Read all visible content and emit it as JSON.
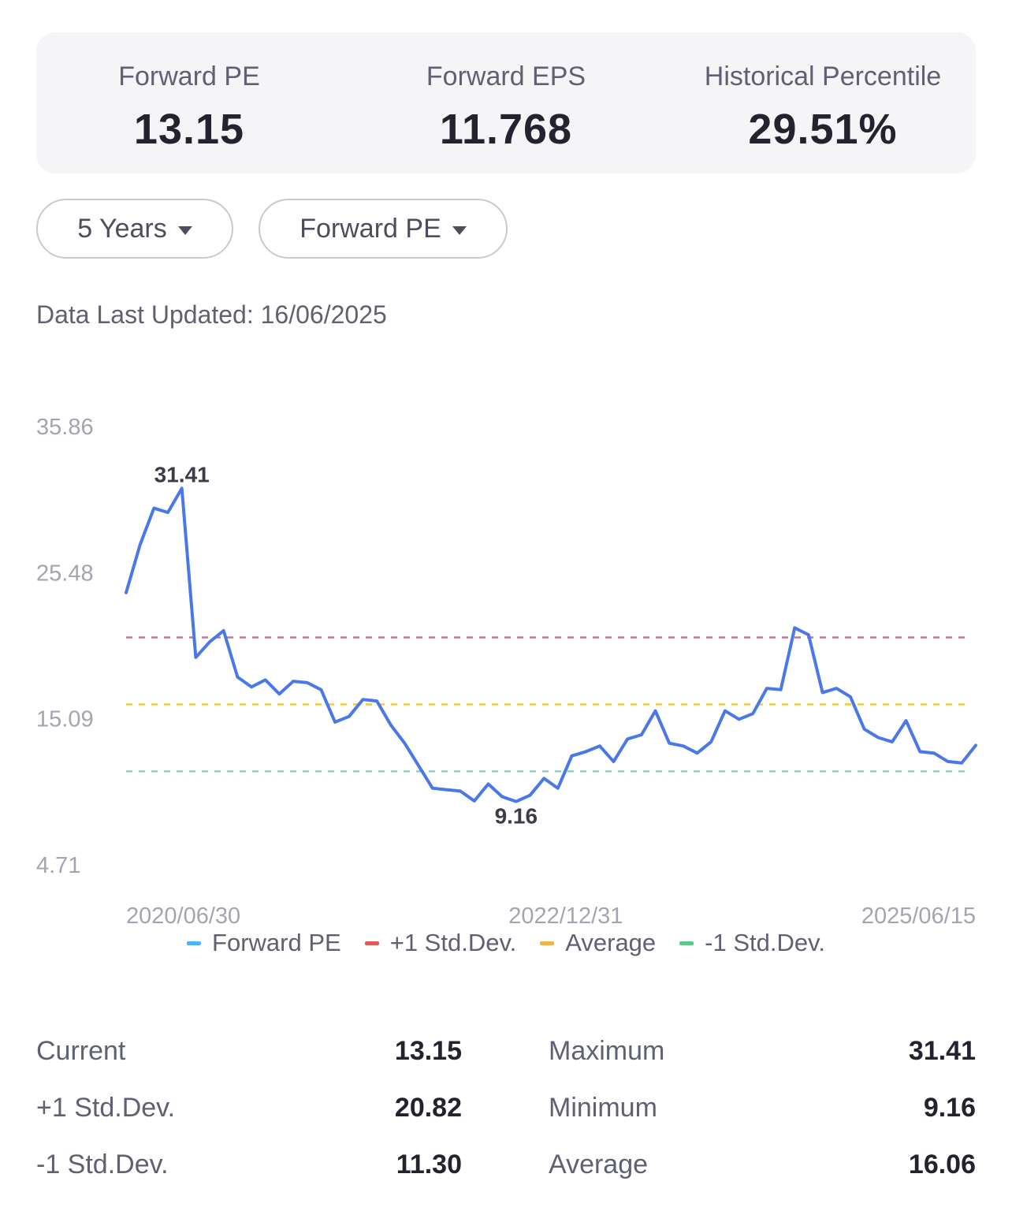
{
  "summary": {
    "metrics": [
      {
        "label": "Forward PE",
        "value": "13.15"
      },
      {
        "label": "Forward EPS",
        "value": "11.768"
      },
      {
        "label": "Historical Percentile",
        "value": "29.51%"
      }
    ]
  },
  "filters": {
    "period": "5 Years",
    "metric": "Forward PE"
  },
  "updated": {
    "label": "Data Last Updated:",
    "date": "16/06/2025"
  },
  "colors": {
    "series": "#4a78e8",
    "plus_std": "#d86aa8",
    "average": "#f0cc3c",
    "minus_std": "#7fd8d0",
    "legend_series": "#4fb3f6",
    "legend_plus_std": "#e05a5a",
    "legend_average": "#f2b04e",
    "legend_minus_std": "#5cc98a"
  },
  "chart_data": {
    "type": "line",
    "y_ticks": [
      "35.86",
      "25.48",
      "15.09",
      "4.71"
    ],
    "ylim": [
      4.71,
      35.86
    ],
    "x_ticks": [
      "2020/06/30",
      "2022/12/31",
      "2025/06/15"
    ],
    "x_range": [
      "2020/06/30",
      "2025/06/15"
    ],
    "series": [
      {
        "name": "Forward PE",
        "values": [
          24.0,
          27.4,
          30.0,
          29.7,
          31.41,
          19.4,
          20.5,
          21.3,
          18.0,
          17.3,
          17.8,
          16.8,
          17.7,
          17.6,
          17.1,
          14.8,
          15.2,
          16.4,
          16.3,
          14.6,
          13.3,
          11.7,
          10.1,
          10.0,
          9.9,
          9.2,
          10.4,
          9.5,
          9.16,
          9.6,
          10.8,
          10.1,
          12.4,
          12.7,
          13.1,
          12.0,
          13.6,
          13.9,
          15.6,
          13.3,
          13.1,
          12.6,
          13.4,
          15.6,
          15.0,
          15.4,
          17.2,
          17.1,
          21.5,
          21.0,
          16.9,
          17.2,
          16.6,
          14.3,
          13.7,
          13.4,
          14.9,
          12.7,
          12.6,
          12.0,
          11.9,
          13.15
        ]
      }
    ],
    "reference_lines": [
      {
        "name": "+1 Std.Dev.",
        "value": 20.82
      },
      {
        "name": "Average",
        "value": 16.06
      },
      {
        "name": "-1 Std.Dev.",
        "value": 11.3
      }
    ],
    "annotations": [
      {
        "label": "31.41",
        "index": 4,
        "value": 31.41,
        "position": "above"
      },
      {
        "label": "9.16",
        "index": 28,
        "value": 9.16,
        "position": "below"
      }
    ],
    "legend": [
      "Forward PE",
      "+1 Std.Dev.",
      "Average",
      "-1 Std.Dev."
    ],
    "legend_placement": "bottom",
    "grid": false
  },
  "stats": {
    "rows": [
      {
        "left_label": "Current",
        "left_value": "13.15",
        "right_label": "Maximum",
        "right_value": "31.41"
      },
      {
        "left_label": "+1 Std.Dev.",
        "left_value": "20.82",
        "right_label": "Minimum",
        "right_value": "9.16"
      },
      {
        "left_label": "-1 Std.Dev.",
        "left_value": "11.30",
        "right_label": "Average",
        "right_value": "16.06"
      }
    ]
  }
}
